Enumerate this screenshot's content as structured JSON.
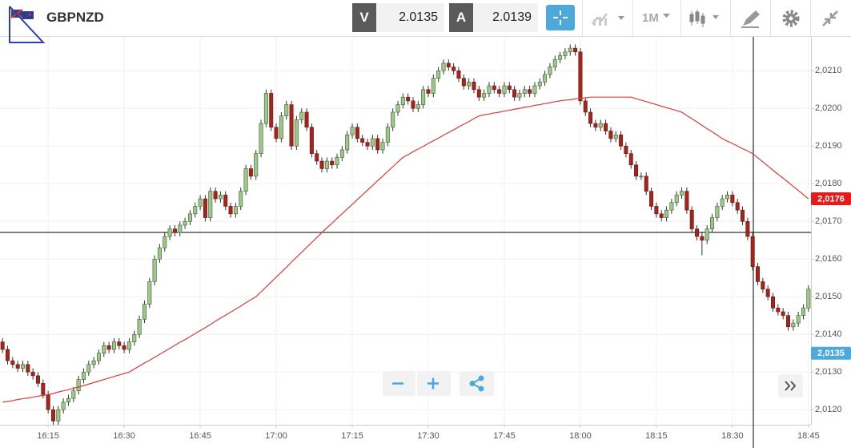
{
  "toolbar": {
    "symbol": "GBPNZD",
    "bid_label": "V",
    "bid": 2.0135,
    "ask_label": "A",
    "ask": 2.0139,
    "timeframe": "1M"
  },
  "chart_data": {
    "type": "candlestick",
    "categories": [
      null,
      null,
      null,
      null,
      null,
      null,
      null,
      null,
      null,
      "16:15",
      null,
      null,
      null,
      null,
      null,
      null,
      null,
      null,
      null,
      null,
      null,
      null,
      null,
      null,
      "16:30",
      null,
      null,
      null,
      null,
      null,
      null,
      null,
      null,
      null,
      null,
      null,
      null,
      null,
      null,
      "16:45",
      null,
      null,
      null,
      null,
      null,
      null,
      null,
      null,
      null,
      null,
      null,
      null,
      null,
      null,
      "17:00",
      null,
      null,
      null,
      null,
      null,
      null,
      null,
      null,
      null,
      null,
      null,
      null,
      null,
      null,
      "17:15",
      null,
      null,
      null,
      null,
      null,
      null,
      null,
      null,
      null,
      null,
      null,
      null,
      null,
      null,
      "17:30",
      null,
      null,
      null,
      null,
      null,
      null,
      null,
      null,
      null,
      null,
      null,
      null,
      null,
      null,
      "17:45",
      null,
      null,
      null,
      null,
      null,
      null,
      null,
      null,
      null,
      null,
      null,
      null,
      null,
      null,
      "18:00",
      null,
      null,
      null,
      null,
      null,
      null,
      null,
      null,
      null,
      null,
      null,
      null,
      null,
      null,
      "18:15",
      null,
      null,
      null,
      null,
      null,
      null,
      null,
      null,
      null,
      null,
      null,
      null,
      null,
      null,
      "18:30",
      null,
      null,
      null,
      null,
      null,
      null,
      null,
      null,
      null,
      null,
      null,
      null,
      null,
      null,
      "18:45"
    ],
    "ohlc": [
      [
        2.0138,
        2.0139,
        2.0135,
        2.0136
      ],
      [
        2.0136,
        2.0137,
        2.0132,
        2.0133
      ],
      [
        2.0133,
        2.0134,
        2.0131,
        2.0132
      ],
      [
        2.0132,
        2.0133,
        2.013,
        2.0131
      ],
      [
        2.0131,
        2.0133,
        2.013,
        2.0132
      ],
      [
        2.0132,
        2.0133,
        2.0129,
        2.013
      ],
      [
        2.013,
        2.0131,
        2.0128,
        2.0129
      ],
      [
        2.0129,
        2.013,
        2.0126,
        2.0127
      ],
      [
        2.0127,
        2.0128,
        2.0123,
        2.0124
      ],
      [
        2.0124,
        2.0125,
        2.0119,
        2.012
      ],
      [
        2.012,
        2.0121,
        2.0116,
        2.0117
      ],
      [
        2.0117,
        2.0121,
        2.0116,
        2.012
      ],
      [
        2.012,
        2.0123,
        2.0119,
        2.0122
      ],
      [
        2.0122,
        2.0124,
        2.0121,
        2.0123
      ],
      [
        2.0123,
        2.0126,
        2.0122,
        2.0125
      ],
      [
        2.0125,
        2.0129,
        2.0124,
        2.0128
      ],
      [
        2.0128,
        2.0131,
        2.0127,
        2.013
      ],
      [
        2.013,
        2.0133,
        2.0129,
        2.0132
      ],
      [
        2.0132,
        2.0134,
        2.0131,
        2.0133
      ],
      [
        2.0133,
        2.0136,
        2.0132,
        2.0135
      ],
      [
        2.0135,
        2.0138,
        2.0134,
        2.0137
      ],
      [
        2.0137,
        2.0138,
        2.0135,
        2.0136
      ],
      [
        2.0136,
        2.0139,
        2.0135,
        2.0138
      ],
      [
        2.0138,
        2.0139,
        2.0136,
        2.0137
      ],
      [
        2.0137,
        2.0138,
        2.0135,
        2.0136
      ],
      [
        2.0136,
        2.0139,
        2.0135,
        2.0138
      ],
      [
        2.0138,
        2.0141,
        2.0137,
        2.014
      ],
      [
        2.014,
        2.0145,
        2.0139,
        2.0144
      ],
      [
        2.0144,
        2.0149,
        2.0143,
        2.0148
      ],
      [
        2.0148,
        2.0155,
        2.0147,
        2.0154
      ],
      [
        2.0154,
        2.0161,
        2.0153,
        2.016
      ],
      [
        2.016,
        2.0164,
        2.0159,
        2.0163
      ],
      [
        2.0163,
        2.0167,
        2.0162,
        2.0166
      ],
      [
        2.0166,
        2.0169,
        2.0165,
        2.0168
      ],
      [
        2.0168,
        2.0169,
        2.0166,
        2.0167
      ],
      [
        2.0167,
        2.017,
        2.0166,
        2.0169
      ],
      [
        2.0169,
        2.0171,
        2.0168,
        2.017
      ],
      [
        2.017,
        2.0173,
        2.0169,
        2.0172
      ],
      [
        2.0172,
        2.0175,
        2.0171,
        2.0174
      ],
      [
        2.0174,
        2.0177,
        2.0173,
        2.0176
      ],
      [
        2.0176,
        2.0177,
        2.017,
        2.0171
      ],
      [
        2.0171,
        2.0179,
        2.017,
        2.0178
      ],
      [
        2.0178,
        2.0179,
        2.0175,
        2.0176
      ],
      [
        2.0176,
        2.0178,
        2.0175,
        2.0177
      ],
      [
        2.0177,
        2.0178,
        2.0173,
        2.0174
      ],
      [
        2.0174,
        2.0175,
        2.0171,
        2.0172
      ],
      [
        2.0172,
        2.0175,
        2.0171,
        2.0174
      ],
      [
        2.0174,
        2.0179,
        2.0173,
        2.0178
      ],
      [
        2.0178,
        2.0185,
        2.0177,
        2.0184
      ],
      [
        2.0184,
        2.0185,
        2.0181,
        2.0182
      ],
      [
        2.0182,
        2.0189,
        2.0181,
        2.0188
      ],
      [
        2.0188,
        2.0197,
        2.0187,
        2.0196
      ],
      [
        2.0196,
        2.0205,
        2.0195,
        2.0204
      ],
      [
        2.0204,
        2.0205,
        2.0194,
        2.0195
      ],
      [
        2.0195,
        2.0196,
        2.0191,
        2.0192
      ],
      [
        2.0192,
        2.0199,
        2.0191,
        2.0198
      ],
      [
        2.0198,
        2.0202,
        2.0197,
        2.0201
      ],
      [
        2.0201,
        2.0202,
        2.0189,
        2.019
      ],
      [
        2.019,
        2.0198,
        2.0189,
        2.0197
      ],
      [
        2.0197,
        2.02,
        2.0196,
        2.0199
      ],
      [
        2.0199,
        2.02,
        2.0194,
        2.0195
      ],
      [
        2.0195,
        2.0196,
        2.0187,
        2.0188
      ],
      [
        2.0188,
        2.0189,
        2.0185,
        2.0186
      ],
      [
        2.0186,
        2.0187,
        2.0183,
        2.0184
      ],
      [
        2.0184,
        2.0187,
        2.0183,
        2.0186
      ],
      [
        2.0186,
        2.0187,
        2.0184,
        2.0185
      ],
      [
        2.0185,
        2.0188,
        2.0184,
        2.0187
      ],
      [
        2.0187,
        2.019,
        2.0186,
        2.0189
      ],
      [
        2.0189,
        2.0194,
        2.0188,
        2.0193
      ],
      [
        2.0193,
        2.0196,
        2.0192,
        2.0195
      ],
      [
        2.0195,
        2.0196,
        2.0191,
        2.0192
      ],
      [
        2.0192,
        2.0193,
        2.019,
        2.0191
      ],
      [
        2.0191,
        2.0192,
        2.0189,
        2.019
      ],
      [
        2.019,
        2.0193,
        2.0189,
        2.0192
      ],
      [
        2.0192,
        2.0193,
        2.0188,
        2.0189
      ],
      [
        2.0189,
        2.0192,
        2.0188,
        2.0191
      ],
      [
        2.0191,
        2.0196,
        2.019,
        2.0195
      ],
      [
        2.0195,
        2.02,
        2.0194,
        2.0199
      ],
      [
        2.0199,
        2.0202,
        2.0198,
        2.0201
      ],
      [
        2.0201,
        2.0204,
        2.02,
        2.0203
      ],
      [
        2.0203,
        2.0204,
        2.0201,
        2.0202
      ],
      [
        2.0202,
        2.0203,
        2.0199,
        2.02
      ],
      [
        2.02,
        2.0202,
        2.0199,
        2.0201
      ],
      [
        2.0201,
        2.0206,
        2.02,
        2.0205
      ],
      [
        2.0205,
        2.0206,
        2.0203,
        2.0204
      ],
      [
        2.0204,
        2.0209,
        2.0203,
        2.0208
      ],
      [
        2.0208,
        2.0211,
        2.0207,
        2.021
      ],
      [
        2.021,
        2.0213,
        2.0209,
        2.0212
      ],
      [
        2.0212,
        2.0213,
        2.021,
        2.0211
      ],
      [
        2.0211,
        2.0212,
        2.0209,
        2.021
      ],
      [
        2.021,
        2.0211,
        2.0207,
        2.0208
      ],
      [
        2.0208,
        2.0209,
        2.0205,
        2.0206
      ],
      [
        2.0206,
        2.0208,
        2.0205,
        2.0207
      ],
      [
        2.0207,
        2.0208,
        2.0204,
        2.0205
      ],
      [
        2.0205,
        2.0206,
        2.0202,
        2.0203
      ],
      [
        2.0203,
        2.0205,
        2.0202,
        2.0204
      ],
      [
        2.0204,
        2.0207,
        2.0203,
        2.0206
      ],
      [
        2.0206,
        2.0207,
        2.0204,
        2.0205
      ],
      [
        2.0205,
        2.0206,
        2.0203,
        2.0204
      ],
      [
        2.0204,
        2.0207,
        2.0203,
        2.0206
      ],
      [
        2.0206,
        2.0207,
        2.0204,
        2.0205
      ],
      [
        2.0205,
        2.0206,
        2.0202,
        2.0203
      ],
      [
        2.0203,
        2.0205,
        2.0202,
        2.0204
      ],
      [
        2.0204,
        2.0206,
        2.0203,
        2.0205
      ],
      [
        2.0205,
        2.0206,
        2.0203,
        2.0204
      ],
      [
        2.0204,
        2.0207,
        2.0203,
        2.0206
      ],
      [
        2.0206,
        2.0208,
        2.0205,
        2.0207
      ],
      [
        2.0207,
        2.021,
        2.0206,
        2.0209
      ],
      [
        2.0209,
        2.0212,
        2.0208,
        2.0211
      ],
      [
        2.0211,
        2.0214,
        2.021,
        2.0213
      ],
      [
        2.0213,
        2.0215,
        2.0212,
        2.0214
      ],
      [
        2.0214,
        2.0216,
        2.0213,
        2.0215
      ],
      [
        2.0215,
        2.0217,
        2.0214,
        2.0216
      ],
      [
        2.0216,
        2.0217,
        2.0214,
        2.0215
      ],
      [
        2.0215,
        2.0216,
        2.0201,
        2.0202
      ],
      [
        2.0202,
        2.0203,
        2.0198,
        2.0199
      ],
      [
        2.0199,
        2.02,
        2.0195,
        2.0196
      ],
      [
        2.0196,
        2.0197,
        2.0194,
        2.0195
      ],
      [
        2.0195,
        2.0197,
        2.0194,
        2.0196
      ],
      [
        2.0196,
        2.0197,
        2.0193,
        2.0194
      ],
      [
        2.0194,
        2.0195,
        2.0191,
        2.0192
      ],
      [
        2.0192,
        2.0194,
        2.0191,
        2.0193
      ],
      [
        2.0193,
        2.0194,
        2.0189,
        2.019
      ],
      [
        2.019,
        2.0191,
        2.0187,
        2.0188
      ],
      [
        2.0188,
        2.0189,
        2.0184,
        2.0185
      ],
      [
        2.0185,
        2.0186,
        2.0181,
        2.0182
      ],
      [
        2.0182,
        2.0183,
        2.0181,
        2.0182
      ],
      [
        2.0182,
        2.0183,
        2.0177,
        2.0178
      ],
      [
        2.0178,
        2.0179,
        2.0173,
        2.0174
      ],
      [
        2.0174,
        2.0175,
        2.0171,
        2.0172
      ],
      [
        2.0172,
        2.0173,
        2.017,
        2.0171
      ],
      [
        2.0171,
        2.0174,
        2.017,
        2.0173
      ],
      [
        2.0173,
        2.0176,
        2.0172,
        2.0175
      ],
      [
        2.0175,
        2.0178,
        2.0174,
        2.0177
      ],
      [
        2.0177,
        2.0179,
        2.0176,
        2.0178
      ],
      [
        2.0178,
        2.0179,
        2.0172,
        2.0173
      ],
      [
        2.0173,
        2.0174,
        2.0167,
        2.0168
      ],
      [
        2.0168,
        2.0169,
        2.0165,
        2.0166
      ],
      [
        2.0166,
        2.0167,
        2.0161,
        2.0165
      ],
      [
        2.0165,
        2.0169,
        2.0164,
        2.0168
      ],
      [
        2.0168,
        2.0172,
        2.0167,
        2.0171
      ],
      [
        2.0171,
        2.0175,
        2.017,
        2.0174
      ],
      [
        2.0174,
        2.0177,
        2.0173,
        2.0176
      ],
      [
        2.0176,
        2.0178,
        2.0175,
        2.0177
      ],
      [
        2.0177,
        2.0178,
        2.0174,
        2.0175
      ],
      [
        2.0175,
        2.0176,
        2.0172,
        2.0173
      ],
      [
        2.0173,
        2.0174,
        2.0169,
        2.017
      ],
      [
        2.017,
        2.0171,
        2.0165,
        2.0166
      ],
      [
        2.0166,
        2.0167,
        2.0157,
        2.0158
      ],
      [
        2.0158,
        2.0159,
        2.0153,
        2.0154
      ],
      [
        2.0154,
        2.0155,
        2.0151,
        2.0152
      ],
      [
        2.0152,
        2.0153,
        2.0149,
        2.015
      ],
      [
        2.015,
        2.0151,
        2.0146,
        2.0147
      ],
      [
        2.0147,
        2.0148,
        2.0145,
        2.0146
      ],
      [
        2.0146,
        2.0147,
        2.0144,
        2.0145
      ],
      [
        2.0145,
        2.0146,
        2.0141,
        2.0142
      ],
      [
        2.0142,
        2.0144,
        2.0141,
        2.0143
      ],
      [
        2.0143,
        2.0146,
        2.0142,
        2.0145
      ],
      [
        2.0145,
        2.0148,
        2.0144,
        2.0147
      ],
      [
        2.0147,
        2.0153,
        2.0146,
        2.0152
      ]
    ],
    "up_color": "#9cc98a",
    "down_color": "#a3261d",
    "wick_color": "#333333",
    "moving_average": {
      "color": "#e03a3a",
      "values": [
        2.0122,
        2.01222,
        2.01224,
        2.01227,
        2.01229,
        2.01231,
        2.01233,
        2.01236,
        2.01238,
        2.0124,
        2.01243,
        2.01247,
        2.0125,
        2.01253,
        2.01257,
        2.0126,
        2.01264,
        2.01268,
        2.01272,
        2.01276,
        2.0128,
        2.01284,
        2.01288,
        2.01292,
        2.01296,
        2.013,
        2.01308,
        2.01316,
        2.01324,
        2.01331,
        2.01339,
        2.01347,
        2.01355,
        2.01363,
        2.01371,
        2.01379,
        2.01386,
        2.01394,
        2.01402,
        2.0141,
        2.01418,
        2.01426,
        2.01435,
        2.01443,
        2.01451,
        2.01459,
        2.01467,
        2.01475,
        2.01484,
        2.01492,
        2.015,
        2.01513,
        2.01526,
        2.01539,
        2.01552,
        2.01565,
        2.01578,
        2.01592,
        2.01605,
        2.01618,
        2.01631,
        2.01644,
        2.01657,
        2.0167,
        2.01683,
        2.01695,
        2.01708,
        2.0172,
        2.01733,
        2.01745,
        2.01758,
        2.0177,
        2.01783,
        2.01795,
        2.01808,
        2.0182,
        2.01833,
        2.01845,
        2.01858,
        2.0187,
        2.01877,
        2.01885,
        2.01892,
        2.01899,
        2.01907,
        2.01914,
        2.01921,
        2.01929,
        2.01936,
        2.01943,
        2.01951,
        2.01958,
        2.01965,
        2.01973,
        2.0198,
        2.01983,
        2.01985,
        2.01988,
        2.0199,
        2.01993,
        2.01995,
        2.01998,
        2.02,
        2.02003,
        2.02005,
        2.02008,
        2.0201,
        2.02013,
        2.02015,
        2.02018,
        2.0202,
        2.02022,
        2.02023,
        2.02025,
        2.02027,
        2.02028,
        2.0203,
        2.0203,
        2.0203,
        2.0203,
        2.0203,
        2.0203,
        2.0203,
        2.0203,
        2.0203,
        2.02026,
        2.02022,
        2.02018,
        2.02014,
        2.0201,
        2.02006,
        2.02002,
        2.01998,
        2.01994,
        2.0199,
        2.01981,
        2.01973,
        2.01964,
        2.01955,
        2.01946,
        2.01938,
        2.01929,
        2.0192,
        2.01913,
        2.01907,
        2.019,
        2.01893,
        2.01887,
        2.0188,
        2.01869,
        2.01858,
        2.01847,
        2.01836,
        2.01825,
        2.01815,
        2.01804,
        2.01793,
        2.01782,
        2.01771,
        2.0176
      ]
    },
    "ylim": [
      2.0116,
      2.0219
    ],
    "yticks": [
      {
        "value": 2.012,
        "label": "2,0120"
      },
      {
        "value": 2.013,
        "label": "2,0130"
      },
      {
        "value": 2.014,
        "label": "2,0140"
      },
      {
        "value": 2.015,
        "label": "2,0150"
      },
      {
        "value": 2.016,
        "label": "2,0160"
      },
      {
        "value": 2.017,
        "label": "2,0170"
      },
      {
        "value": 2.018,
        "label": "2,0180"
      },
      {
        "value": 2.019,
        "label": "2,0190"
      },
      {
        "value": 2.02,
        "label": "2,0200"
      },
      {
        "value": 2.021,
        "label": "2,0210"
      }
    ],
    "price_labels": [
      {
        "value": 2.0176,
        "label": "2,0176",
        "color": "#e31b1b"
      },
      {
        "value": 2.0135,
        "label": "2,0135",
        "color": "#4ea8da"
      }
    ],
    "grid": true
  }
}
